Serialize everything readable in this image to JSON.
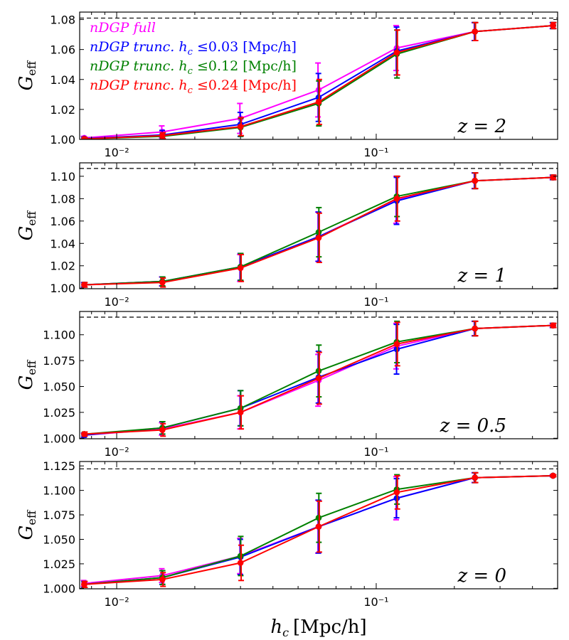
{
  "chart_data": {
    "type": "line",
    "xscale": "log",
    "x": [
      0.0075,
      0.015,
      0.03,
      0.06,
      0.12,
      0.24,
      0.48
    ],
    "xlim": [
      0.0072,
      0.5
    ],
    "xticks": [
      {
        "value": 0.01,
        "label": "10⁻²"
      },
      {
        "value": 0.1,
        "label": "10⁻¹"
      }
    ],
    "xlabel": "h",
    "xlabel_sub": "c",
    "xlabel_unit": "[Mpc/h]",
    "ylabel": "G",
    "ylabel_sub": "eff",
    "legend": [
      {
        "label": "nDGP  full",
        "color": "#ff00ff"
      },
      {
        "label": "nDGP  trunc. h",
        "sub": "c",
        "rest": " ≤0.03 [Mpc/h]",
        "color": "#0000ff"
      },
      {
        "label": "nDGP  trunc. h",
        "sub": "c",
        "rest": " ≤0.12 [Mpc/h]",
        "color": "#008000"
      },
      {
        "label": "nDGP  trunc. h",
        "sub": "c",
        "rest": " ≤0.24 [Mpc/h]",
        "color": "#ff0000"
      }
    ],
    "panels": [
      {
        "z_label": "z = 2",
        "ylim": [
          1.0,
          1.085
        ],
        "yticks": [
          1.0,
          1.02,
          1.04,
          1.06,
          1.08
        ],
        "ytick_labels": [
          "1.00",
          "1.02",
          "1.04",
          "1.06",
          "1.08"
        ],
        "asymptote": 1.081,
        "series": [
          {
            "name": "nDGP full",
            "color": "#ff00ff",
            "values": [
              1.001,
              1.005,
              1.014,
              1.033,
              1.061,
              1.072,
              1.076
            ],
            "errors": [
              0.001,
              0.004,
              0.01,
              0.018,
              0.015,
              0.006,
              0.002
            ]
          },
          {
            "name": "nDGP trunc. hc <= 0.03",
            "color": "#0000ff",
            "values": [
              1.0005,
              1.003,
              1.01,
              1.028,
              1.059,
              1.072,
              1.076
            ],
            "errors": [
              0.001,
              0.003,
              0.008,
              0.016,
              0.016,
              0.006,
              0.002
            ]
          },
          {
            "name": "nDGP trunc. hc <= 0.12",
            "color": "#008000",
            "values": [
              1.0003,
              1.002,
              1.008,
              1.024,
              1.057,
              1.072,
              1.076
            ],
            "errors": [
              0.001,
              0.002,
              0.006,
              0.015,
              0.016,
              0.006,
              0.002
            ]
          },
          {
            "name": "nDGP trunc. hc <= 0.24",
            "color": "#ff0000",
            "values": [
              1.0003,
              1.0025,
              1.0085,
              1.025,
              1.058,
              1.072,
              1.076
            ],
            "errors": [
              0.001,
              0.002,
              0.006,
              0.015,
              0.015,
              0.006,
              0.002
            ]
          }
        ]
      },
      {
        "z_label": "z = 1",
        "ylim": [
          0.9995,
          1.112
        ],
        "yticks": [
          1.0,
          1.02,
          1.04,
          1.06,
          1.08,
          1.1
        ],
        "ytick_labels": [
          "1.00",
          "1.02",
          "1.04",
          "1.06",
          "1.08",
          "1.10"
        ],
        "asymptote": 1.107,
        "series": [
          {
            "name": "nDGP full",
            "color": "#ff00ff",
            "values": [
              1.003,
              1.006,
              1.018,
              1.046,
              1.079,
              1.096,
              1.099
            ],
            "errors": [
              0.002,
              0.004,
              0.012,
              0.022,
              0.021,
              0.007,
              0.002
            ]
          },
          {
            "name": "nDGP trunc. hc <= 0.03",
            "color": "#0000ff",
            "values": [
              1.003,
              1.006,
              1.019,
              1.046,
              1.078,
              1.096,
              1.099
            ],
            "errors": [
              0.002,
              0.004,
              0.012,
              0.022,
              0.021,
              0.007,
              0.002
            ]
          },
          {
            "name": "nDGP trunc. hc <= 0.12",
            "color": "#008000",
            "values": [
              1.003,
              1.006,
              1.019,
              1.05,
              1.082,
              1.096,
              1.099
            ],
            "errors": [
              0.002,
              0.004,
              0.012,
              0.022,
              0.018,
              0.007,
              0.002
            ]
          },
          {
            "name": "nDGP trunc. hc <= 0.24",
            "color": "#ff0000",
            "values": [
              1.003,
              1.005,
              1.018,
              1.045,
              1.08,
              1.096,
              1.099
            ],
            "errors": [
              0.002,
              0.004,
              0.012,
              0.022,
              0.02,
              0.007,
              0.002
            ]
          }
        ]
      },
      {
        "z_label": "z = 0.5",
        "ylim": [
          0.9995,
          1.1225
        ],
        "yticks": [
          1.0,
          1.025,
          1.05,
          1.075,
          1.1
        ],
        "ytick_labels": [
          "1.000",
          "1.025",
          "1.050",
          "1.075",
          "1.100"
        ],
        "asymptote": 1.117,
        "series": [
          {
            "name": "nDGP full",
            "color": "#ff00ff",
            "values": [
              1.003,
              1.009,
              1.025,
              1.056,
              1.089,
              1.106,
              1.109
            ],
            "errors": [
              0.002,
              0.006,
              0.016,
              0.025,
              0.022,
              0.007,
              0.002
            ]
          },
          {
            "name": "nDGP trunc. hc <= 0.03",
            "color": "#0000ff",
            "values": [
              1.003,
              1.01,
              1.029,
              1.059,
              1.086,
              1.106,
              1.109
            ],
            "errors": [
              0.002,
              0.006,
              0.017,
              0.025,
              0.024,
              0.007,
              0.002
            ]
          },
          {
            "name": "nDGP trunc. hc <= 0.12",
            "color": "#008000",
            "values": [
              1.004,
              1.01,
              1.029,
              1.065,
              1.093,
              1.106,
              1.109
            ],
            "errors": [
              0.002,
              0.006,
              0.017,
              0.025,
              0.02,
              0.007,
              0.002
            ]
          },
          {
            "name": "nDGP trunc. hc <= 0.24",
            "color": "#ff0000",
            "values": [
              1.004,
              1.008,
              1.025,
              1.058,
              1.091,
              1.106,
              1.109
            ],
            "errors": [
              0.002,
              0.006,
              0.016,
              0.025,
              0.021,
              0.007,
              0.002
            ]
          }
        ]
      },
      {
        "z_label": "z = 0",
        "ylim": [
          0.9995,
          1.1295
        ],
        "yticks": [
          1.0,
          1.025,
          1.05,
          1.075,
          1.1,
          1.125
        ],
        "ytick_labels": [
          "1.000",
          "1.025",
          "1.050",
          "1.075",
          "1.100",
          "1.125"
        ],
        "asymptote": 1.122,
        "series": [
          {
            "name": "nDGP full",
            "color": "#ff00ff",
            "values": [
              1.005,
              1.013,
              1.033,
              1.063,
              1.092,
              1.113,
              1.115
            ],
            "errors": [
              0.003,
              0.007,
              0.018,
              0.027,
              0.022,
              0.005,
              0.001
            ]
          },
          {
            "name": "nDGP trunc. hc <= 0.03",
            "color": "#0000ff",
            "values": [
              1.004,
              1.011,
              1.032,
              1.063,
              1.092,
              1.113,
              1.115
            ],
            "errors": [
              0.003,
              0.007,
              0.018,
              0.027,
              0.02,
              0.005,
              0.001
            ]
          },
          {
            "name": "nDGP trunc. hc <= 0.12",
            "color": "#008000",
            "values": [
              1.004,
              1.011,
              1.033,
              1.072,
              1.101,
              1.113,
              1.115
            ],
            "errors": [
              0.003,
              0.007,
              0.02,
              0.025,
              0.015,
              0.005,
              0.001
            ]
          },
          {
            "name": "nDGP trunc. hc <= 0.24",
            "color": "#ff0000",
            "values": [
              1.004,
              1.009,
              1.026,
              1.063,
              1.098,
              1.113,
              1.115
            ],
            "errors": [
              0.003,
              0.007,
              0.018,
              0.026,
              0.017,
              0.005,
              0.001
            ]
          }
        ]
      }
    ]
  }
}
